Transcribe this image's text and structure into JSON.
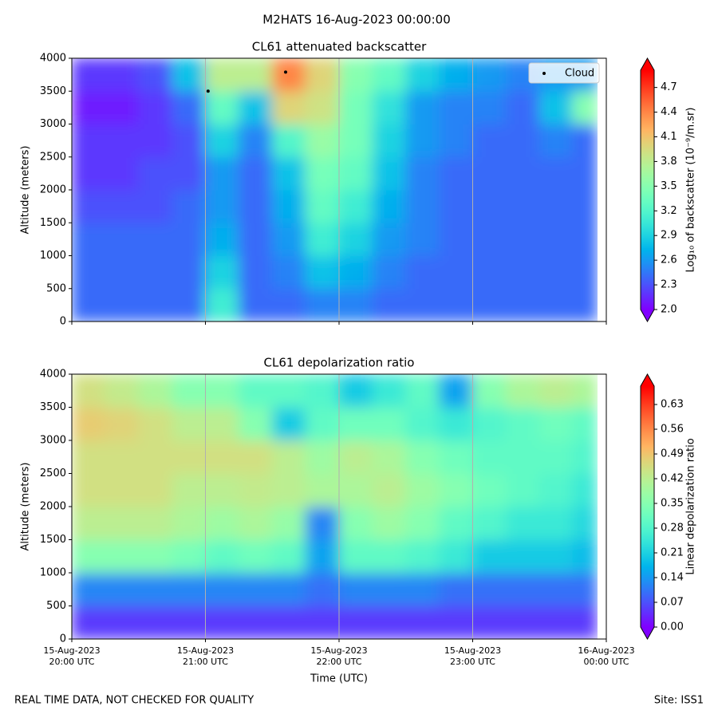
{
  "suptitle": "M2HATS 16-Aug-2023 00:00:00",
  "footer_left": "REAL TIME DATA, NOT CHECKED FOR QUALITY",
  "footer_right": "Site: ISS1",
  "chart_data": [
    {
      "type": "heatmap",
      "title": "CL61 attenuated backscatter",
      "ylabel": "Altitude (meters)",
      "colormap": "rainbow",
      "colorbar_label": "Log₁₀ of backscatter (10⁻⁹/m.sr)",
      "xlim": [
        20,
        24
      ],
      "xticks": [
        20,
        21,
        22,
        23,
        24
      ],
      "grid_x": true,
      "ylim": [
        0,
        4000
      ],
      "yticks": [
        0,
        500,
        1000,
        1500,
        2000,
        2500,
        3000,
        3500,
        4000
      ],
      "x_bins": [
        20,
        20.25,
        20.5,
        20.75,
        21,
        21.25,
        21.5,
        21.75,
        22,
        22.25,
        22.5,
        22.75,
        23,
        23.25,
        23.5,
        23.75,
        23.93
      ],
      "y_bins": [
        0,
        500,
        1000,
        1500,
        2000,
        2500,
        3000,
        3500,
        4000
      ],
      "values": [
        [
          2.4,
          2.4,
          2.4,
          2.3,
          2.2,
          2.2,
          2.1,
          2.2
        ],
        [
          2.4,
          2.4,
          2.4,
          2.3,
          2.2,
          2.2,
          2.1,
          2.2
        ],
        [
          2.4,
          2.4,
          2.4,
          2.3,
          2.3,
          2.2,
          2.2,
          2.3
        ],
        [
          2.4,
          2.4,
          2.4,
          2.4,
          2.3,
          2.3,
          2.4,
          2.8
        ],
        [
          3.1,
          2.9,
          2.7,
          2.6,
          2.6,
          2.9,
          3.3,
          3.8
        ],
        [
          2.4,
          2.4,
          2.4,
          2.4,
          2.4,
          2.5,
          2.8,
          3.8
        ],
        [
          2.4,
          2.5,
          2.6,
          2.7,
          2.8,
          3.2,
          4.0,
          4.4
        ],
        [
          2.5,
          2.8,
          3.1,
          3.3,
          3.4,
          3.6,
          3.9,
          4.0
        ],
        [
          2.5,
          2.7,
          2.9,
          3.1,
          3.3,
          3.4,
          3.4,
          3.5
        ],
        [
          2.4,
          2.5,
          2.6,
          2.7,
          2.8,
          2.9,
          3.0,
          3.3
        ],
        [
          2.4,
          2.4,
          2.5,
          2.5,
          2.5,
          2.6,
          2.6,
          2.9
        ],
        [
          2.4,
          2.4,
          2.4,
          2.4,
          2.4,
          2.5,
          2.5,
          2.7
        ],
        [
          2.4,
          2.4,
          2.4,
          2.4,
          2.4,
          2.4,
          2.5,
          2.6
        ],
        [
          2.4,
          2.4,
          2.4,
          2.4,
          2.4,
          2.4,
          2.4,
          2.5
        ],
        [
          2.4,
          2.4,
          2.4,
          2.4,
          2.4,
          2.5,
          2.8,
          2.6
        ],
        [
          2.4,
          2.4,
          2.4,
          2.4,
          2.4,
          2.4,
          3.5,
          2.6
        ]
      ],
      "clim": [
        2.0,
        4.91
      ],
      "cticks": [
        {
          "value": 2.0,
          "label": "2.0"
        },
        {
          "value": 2.3,
          "label": "2.3"
        },
        {
          "value": 2.6,
          "label": "2.6"
        },
        {
          "value": 2.9,
          "label": "2.9"
        },
        {
          "value": 3.2,
          "label": "3.2"
        },
        {
          "value": 3.5,
          "label": "3.5"
        },
        {
          "value": 3.8,
          "label": "3.8"
        },
        {
          "value": 4.1,
          "label": "4.1"
        },
        {
          "value": 4.4,
          "label": "4.4"
        },
        {
          "value": 4.7,
          "label": "4.7"
        }
      ],
      "series": [
        {
          "name": "Cloud",
          "color": "#000000",
          "x": [
            21.02,
            21.6
          ],
          "y": [
            3500,
            3790
          ]
        }
      ],
      "legend": "upper right"
    },
    {
      "type": "heatmap",
      "title": "CL61 depolarization ratio",
      "ylabel": "Altitude (meters)",
      "xlabel": "Time (UTC)",
      "colormap": "rainbow",
      "colorbar_label": "Linear depolarization ratio",
      "xlim": [
        20,
        24
      ],
      "xticks": [
        {
          "value": 20,
          "label": "15-Aug-2023\n20:00 UTC"
        },
        {
          "value": 21,
          "label": "15-Aug-2023\n21:00 UTC"
        },
        {
          "value": 22,
          "label": "15-Aug-2023\n22:00 UTC"
        },
        {
          "value": 23,
          "label": "15-Aug-2023\n23:00 UTC"
        },
        {
          "value": 24,
          "label": "16-Aug-2023\n00:00 UTC"
        }
      ],
      "grid_x": true,
      "ylim": [
        0,
        4000
      ],
      "yticks": [
        0,
        500,
        1000,
        1500,
        2000,
        2500,
        3000,
        3500,
        4000
      ],
      "x_bins": [
        20,
        20.25,
        20.5,
        20.75,
        21,
        21.25,
        21.5,
        21.75,
        22,
        22.25,
        22.5,
        22.75,
        23,
        23.25,
        23.5,
        23.75,
        23.93
      ],
      "y_bins": [
        0,
        500,
        1000,
        1500,
        2000,
        2500,
        3000,
        3500,
        4000
      ],
      "values": [
        [
          0.05,
          0.12,
          0.35,
          0.42,
          0.45,
          0.45,
          0.48,
          0.45
        ],
        [
          0.05,
          0.12,
          0.35,
          0.42,
          0.45,
          0.45,
          0.47,
          0.43
        ],
        [
          0.05,
          0.12,
          0.35,
          0.42,
          0.45,
          0.45,
          0.45,
          0.4
        ],
        [
          0.05,
          0.12,
          0.33,
          0.4,
          0.42,
          0.45,
          0.42,
          0.35
        ],
        [
          0.05,
          0.12,
          0.3,
          0.38,
          0.42,
          0.45,
          0.42,
          0.35
        ],
        [
          0.05,
          0.12,
          0.32,
          0.4,
          0.43,
          0.45,
          0.35,
          0.3
        ],
        [
          0.05,
          0.12,
          0.3,
          0.37,
          0.42,
          0.42,
          0.2,
          0.3
        ],
        [
          0.05,
          0.1,
          0.15,
          0.12,
          0.4,
          0.38,
          0.3,
          0.28
        ],
        [
          0.05,
          0.12,
          0.3,
          0.35,
          0.4,
          0.42,
          0.32,
          0.2
        ],
        [
          0.05,
          0.12,
          0.3,
          0.38,
          0.42,
          0.4,
          0.32,
          0.25
        ],
        [
          0.05,
          0.12,
          0.28,
          0.35,
          0.38,
          0.35,
          0.28,
          0.3
        ],
        [
          0.05,
          0.1,
          0.25,
          0.3,
          0.35,
          0.32,
          0.25,
          0.15
        ],
        [
          0.05,
          0.1,
          0.2,
          0.28,
          0.32,
          0.3,
          0.28,
          0.35
        ],
        [
          0.05,
          0.1,
          0.2,
          0.25,
          0.3,
          0.3,
          0.3,
          0.4
        ],
        [
          0.05,
          0.1,
          0.2,
          0.25,
          0.28,
          0.3,
          0.32,
          0.42
        ],
        [
          0.05,
          0.1,
          0.18,
          0.22,
          0.25,
          0.28,
          0.3,
          0.4
        ]
      ],
      "clim": [
        0,
        0.682
      ],
      "cticks": [
        {
          "value": 0,
          "label": "0.00"
        },
        {
          "value": 0.07,
          "label": "0.07"
        },
        {
          "value": 0.14,
          "label": "0.14"
        },
        {
          "value": 0.21,
          "label": "0.21"
        },
        {
          "value": 0.28,
          "label": "0.28"
        },
        {
          "value": 0.35,
          "label": "0.35"
        },
        {
          "value": 0.42,
          "label": "0.42"
        },
        {
          "value": 0.49,
          "label": "0.49"
        },
        {
          "value": 0.56,
          "label": "0.56"
        },
        {
          "value": 0.63,
          "label": "0.63"
        }
      ]
    }
  ]
}
